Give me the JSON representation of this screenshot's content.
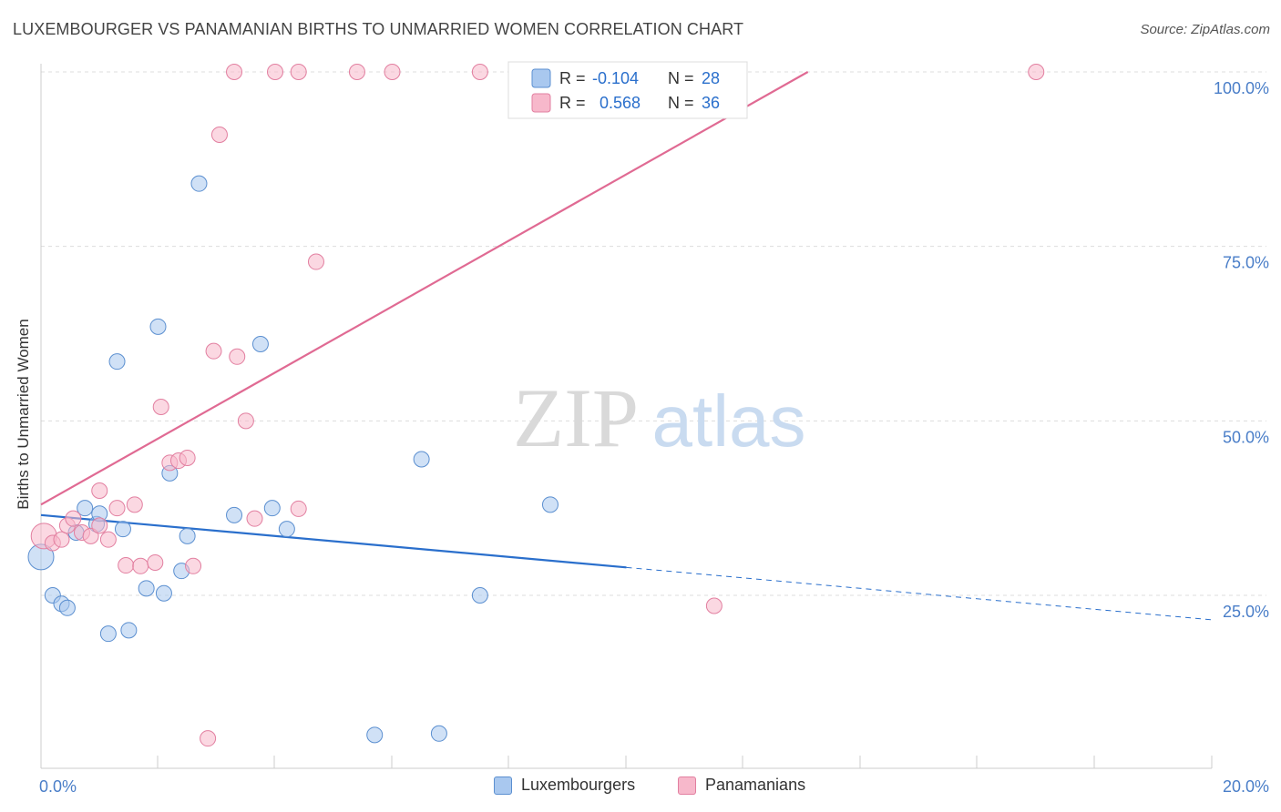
{
  "title": "LUXEMBOURGER VS PANAMANIAN BIRTHS TO UNMARRIED WOMEN CORRELATION CHART",
  "source": "Source: ZipAtlas.com",
  "watermark": {
    "zip": "ZIP",
    "atlas": "atlas"
  },
  "colors": {
    "blue_fill": "#a9c8ef",
    "blue_stroke": "#5b8fd0",
    "blue_line": "#2a6fcc",
    "pink_fill": "#f7b8cb",
    "pink_stroke": "#e27fa0",
    "pink_line": "#e06a93",
    "tick_label": "#4a7ec8",
    "grid": "#dddddd"
  },
  "legend": {
    "rows": [
      {
        "r_label": "R =",
        "r_value": "-0.104",
        "n_label": "N =",
        "n_value": "28"
      },
      {
        "r_label": "R =",
        "r_value": "0.568",
        "n_label": "N =",
        "n_value": "36"
      }
    ]
  },
  "bottom_legend": [
    "Luxembourgers",
    "Panamanians"
  ],
  "chart_data": {
    "type": "scatter",
    "xlabel": "",
    "ylabel": "Births to Unmarried Women",
    "xlim": [
      0,
      20
    ],
    "ylim": [
      0,
      105
    ],
    "x_ticks": [
      0,
      20
    ],
    "x_tick_labels": [
      "0.0%",
      "20.0%"
    ],
    "y_ticks": [
      25,
      50,
      75,
      100
    ],
    "y_tick_labels": [
      "25.0%",
      "50.0%",
      "75.0%",
      "100.0%"
    ],
    "grid": true,
    "legend_position": "top-center",
    "series": [
      {
        "name": "Luxembourgers",
        "R": -0.104,
        "N": 28,
        "points": [
          [
            0.0,
            30.5
          ],
          [
            0.2,
            25.0
          ],
          [
            0.35,
            23.8
          ],
          [
            0.45,
            23.2
          ],
          [
            0.6,
            34.0
          ],
          [
            0.75,
            37.5
          ],
          [
            0.95,
            35.2
          ],
          [
            1.0,
            36.7
          ],
          [
            1.15,
            19.5
          ],
          [
            1.3,
            58.5
          ],
          [
            1.4,
            34.5
          ],
          [
            1.5,
            20.0
          ],
          [
            1.8,
            26.0
          ],
          [
            2.0,
            63.5
          ],
          [
            2.1,
            25.3
          ],
          [
            2.2,
            42.5
          ],
          [
            2.4,
            28.5
          ],
          [
            2.5,
            33.5
          ],
          [
            2.7,
            84.0
          ],
          [
            3.3,
            36.5
          ],
          [
            3.75,
            61.0
          ],
          [
            3.95,
            37.5
          ],
          [
            4.2,
            34.5
          ],
          [
            5.7,
            5.0
          ],
          [
            6.5,
            44.5
          ],
          [
            6.8,
            5.2
          ],
          [
            7.5,
            25.0
          ],
          [
            8.7,
            38.0
          ]
        ],
        "trend": {
          "x": [
            0,
            10
          ],
          "y": [
            36.5,
            29.0
          ],
          "dashed_x": [
            10,
            20
          ],
          "dashed_y": [
            29.0,
            21.5
          ]
        }
      },
      {
        "name": "Panamanians",
        "R": 0.568,
        "N": 36,
        "points": [
          [
            0.05,
            33.5
          ],
          [
            0.2,
            32.5
          ],
          [
            0.35,
            33.0
          ],
          [
            0.45,
            35.0
          ],
          [
            0.55,
            36.0
          ],
          [
            0.7,
            34.0
          ],
          [
            0.85,
            33.5
          ],
          [
            1.0,
            35.0
          ],
          [
            1.0,
            40.0
          ],
          [
            1.15,
            33.0
          ],
          [
            1.3,
            37.5
          ],
          [
            1.45,
            29.3
          ],
          [
            1.6,
            38.0
          ],
          [
            1.7,
            29.2
          ],
          [
            1.95,
            29.7
          ],
          [
            2.05,
            52.0
          ],
          [
            2.2,
            44.0
          ],
          [
            2.35,
            44.3
          ],
          [
            2.5,
            44.7
          ],
          [
            2.6,
            29.2
          ],
          [
            2.85,
            4.5
          ],
          [
            2.95,
            60.0
          ],
          [
            3.05,
            91.0
          ],
          [
            3.3,
            100.0
          ],
          [
            3.35,
            59.2
          ],
          [
            3.5,
            50.0
          ],
          [
            3.65,
            36.0
          ],
          [
            4.0,
            100.0
          ],
          [
            4.4,
            37.4
          ],
          [
            4.4,
            100.0
          ],
          [
            4.7,
            72.8
          ],
          [
            5.4,
            100.0
          ],
          [
            6.0,
            100.0
          ],
          [
            7.5,
            100.0
          ],
          [
            11.5,
            23.5
          ],
          [
            17.0,
            100.0
          ]
        ],
        "trend": {
          "x": [
            0,
            13.1
          ],
          "y": [
            38.0,
            100.0
          ]
        }
      }
    ]
  }
}
